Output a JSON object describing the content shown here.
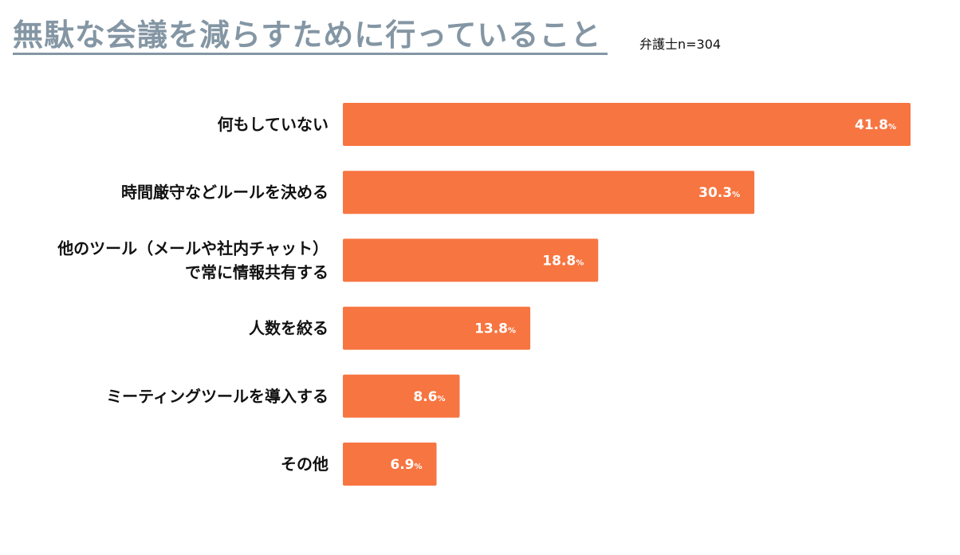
{
  "header": {
    "title": "無駄な会議を減らすために行っていること",
    "subtitle": "弁護士n=304"
  },
  "colors": {
    "bar": "#f77541",
    "title": "#8496a4"
  },
  "chart_data": {
    "type": "bar",
    "orientation": "horizontal",
    "title": "無駄な会議を減らすために行っていること",
    "subtitle": "弁護士n=304",
    "unit": "%",
    "xlim": [
      0,
      41.8
    ],
    "grid": false,
    "categories": [
      [
        "何もしていない"
      ],
      [
        "時間厳守などルールを決める"
      ],
      [
        "他のツール（メールや社内チャット）",
        "で常に情報共有する"
      ],
      [
        "人数を絞る"
      ],
      [
        "ミーティングツールを導入する"
      ],
      [
        "その他"
      ]
    ],
    "values": [
      41.8,
      30.3,
      18.8,
      13.8,
      8.6,
      6.9
    ],
    "value_labels": [
      "41.8",
      "30.3",
      "18.8",
      "13.8",
      "8.6",
      "6.9"
    ]
  }
}
